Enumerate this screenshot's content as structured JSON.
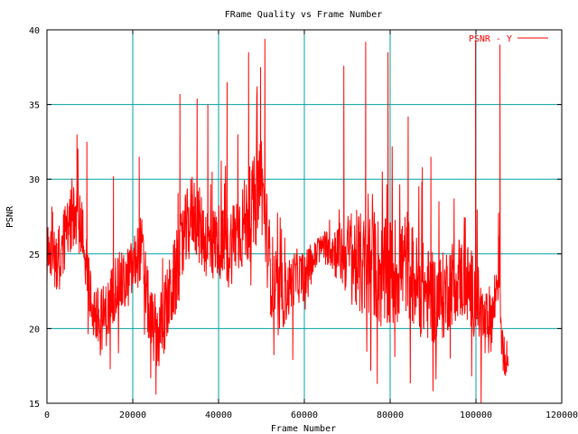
{
  "chart_data": {
    "type": "line",
    "title": "FRame Quality vs Frame Number",
    "xlabel": "Frame Number",
    "ylabel": "PSNR",
    "xlim": [
      0,
      120000
    ],
    "ylim": [
      15,
      40
    ],
    "xticks": [
      0,
      20000,
      40000,
      60000,
      80000,
      100000,
      120000
    ],
    "xtick_labels": [
      "0",
      "20000",
      "40000",
      "60000",
      "80000",
      "100000",
      "120000"
    ],
    "yticks": [
      15,
      20,
      25,
      30,
      35,
      40
    ],
    "ytick_labels": [
      "15",
      "20",
      "25",
      "30",
      "35",
      "40"
    ],
    "grid": true,
    "legend_position": "top-right",
    "series": [
      {
        "name": "PSNR - Y",
        "color": "#ff0000",
        "x_start": 0,
        "x_end": 107500,
        "baseline": [
          [
            0,
            25.0
          ],
          [
            2000,
            24.5
          ],
          [
            4000,
            26.0
          ],
          [
            6000,
            27.5
          ],
          [
            8000,
            27.0
          ],
          [
            10000,
            22.0
          ],
          [
            12000,
            20.5
          ],
          [
            14000,
            21.0
          ],
          [
            16000,
            23.0
          ],
          [
            18000,
            23.0
          ],
          [
            20000,
            24.0
          ],
          [
            22000,
            25.5
          ],
          [
            24000,
            20.5
          ],
          [
            26000,
            19.5
          ],
          [
            28000,
            21.5
          ],
          [
            30000,
            23.5
          ],
          [
            32000,
            26.0
          ],
          [
            34000,
            28.0
          ],
          [
            36000,
            26.5
          ],
          [
            38000,
            25.5
          ],
          [
            40000,
            26.0
          ],
          [
            42000,
            25.0
          ],
          [
            44000,
            26.5
          ],
          [
            46000,
            27.0
          ],
          [
            48000,
            28.0
          ],
          [
            50000,
            30.0
          ],
          [
            52000,
            24.0
          ],
          [
            54000,
            22.0
          ],
          [
            56000,
            22.5
          ],
          [
            58000,
            23.5
          ],
          [
            60000,
            23.5
          ],
          [
            62000,
            24.5
          ],
          [
            64000,
            25.5
          ],
          [
            66000,
            25.5
          ],
          [
            68000,
            25.0
          ],
          [
            70000,
            25.0
          ],
          [
            72000,
            24.5
          ],
          [
            74000,
            24.0
          ],
          [
            76000,
            24.5
          ],
          [
            78000,
            23.5
          ],
          [
            80000,
            23.5
          ],
          [
            82000,
            24.0
          ],
          [
            84000,
            24.5
          ],
          [
            86000,
            23.0
          ],
          [
            88000,
            22.5
          ],
          [
            90000,
            22.0
          ],
          [
            92000,
            22.0
          ],
          [
            94000,
            23.0
          ],
          [
            96000,
            23.5
          ],
          [
            98000,
            23.0
          ],
          [
            100000,
            22.0
          ],
          [
            102000,
            20.0
          ],
          [
            104000,
            21.0
          ],
          [
            105500,
            24.5
          ],
          [
            106000,
            18.5
          ],
          [
            107500,
            18.0
          ]
        ],
        "noise_amplitude": [
          [
            0,
            1.5
          ],
          [
            10000,
            1.6
          ],
          [
            20000,
            1.5
          ],
          [
            30000,
            2.0
          ],
          [
            40000,
            1.8
          ],
          [
            50000,
            2.5
          ],
          [
            56000,
            1.5
          ],
          [
            60000,
            1.2
          ],
          [
            64000,
            0.6
          ],
          [
            68000,
            1.5
          ],
          [
            72000,
            2.5
          ],
          [
            80000,
            2.8
          ],
          [
            90000,
            2.2
          ],
          [
            100000,
            2.0
          ],
          [
            105000,
            1.5
          ],
          [
            107500,
            0.7
          ]
        ],
        "spikes": [
          [
            7000,
            33.0
          ],
          [
            9300,
            32.5
          ],
          [
            15500,
            30.2
          ],
          [
            21500,
            31.5
          ],
          [
            31000,
            35.7
          ],
          [
            35000,
            35.4
          ],
          [
            37500,
            35.0
          ],
          [
            38500,
            30.5
          ],
          [
            42000,
            36.5
          ],
          [
            44500,
            33.0
          ],
          [
            47000,
            38.5
          ],
          [
            49800,
            37.5
          ],
          [
            50800,
            39.4
          ],
          [
            57300,
            17.9
          ],
          [
            69200,
            37.6
          ],
          [
            74300,
            39.2
          ],
          [
            75500,
            17.4
          ],
          [
            77000,
            16.3
          ],
          [
            79500,
            38.5
          ],
          [
            84200,
            34.2
          ],
          [
            87500,
            30.8
          ],
          [
            89500,
            31.5
          ],
          [
            94000,
            18.0
          ],
          [
            99000,
            16.8
          ],
          [
            99900,
            39.3
          ],
          [
            105600,
            39.0
          ]
        ]
      }
    ]
  }
}
